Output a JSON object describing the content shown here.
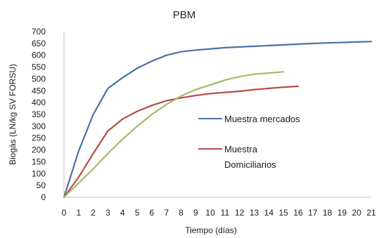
{
  "chart_data": {
    "type": "line",
    "title": "PBM",
    "xlabel": "Tiempo (días)",
    "ylabel": "Biogás (LN/kg SV  FORSU)",
    "x_ticks": [
      "0",
      "1",
      "2",
      "3",
      "4",
      "5",
      "6",
      "7",
      "8",
      "9",
      "10",
      "11",
      "12",
      "13",
      "14",
      "15",
      "16",
      "17",
      "18",
      "19",
      "20",
      "21"
    ],
    "y_ticks": [
      "0",
      "50",
      "100",
      "150",
      "200",
      "250",
      "300",
      "350",
      "400",
      "450",
      "500",
      "550",
      "600",
      "650",
      "700"
    ],
    "xlim": [
      0,
      21
    ],
    "ylim": [
      0,
      700
    ],
    "grid": false,
    "legend_placement": "center-right",
    "legend_entries": [
      "Muestra mercados",
      "Muestra",
      "Domiciliarios"
    ],
    "series": [
      {
        "name": "Muestra mercados",
        "color": "#4a72a8",
        "x": [
          0,
          1,
          2,
          3,
          4,
          5,
          6,
          7,
          8,
          9,
          10,
          11,
          12,
          13,
          14,
          15,
          16,
          17,
          18,
          19,
          20,
          21
        ],
        "values": [
          0,
          195,
          350,
          460,
          505,
          545,
          575,
          600,
          615,
          622,
          627,
          632,
          635,
          638,
          641,
          644,
          647,
          650,
          652,
          654,
          656,
          658
        ]
      },
      {
        "name": "Muestra Domiciliarios",
        "color": "#b84a47",
        "x": [
          0,
          1,
          2,
          3,
          4,
          5,
          6,
          7,
          8,
          9,
          10,
          11,
          12,
          13,
          14,
          15,
          16
        ],
        "values": [
          0,
          85,
          185,
          280,
          330,
          363,
          388,
          408,
          420,
          430,
          438,
          443,
          448,
          455,
          460,
          465,
          469
        ]
      },
      {
        "color": "#a6b96a",
        "x": [
          0,
          1,
          2,
          3,
          4,
          5,
          6,
          7,
          8,
          9,
          10,
          11,
          12,
          13,
          14,
          15
        ],
        "values": [
          0,
          60,
          120,
          185,
          245,
          300,
          350,
          392,
          428,
          455,
          475,
          495,
          510,
          520,
          525,
          530
        ]
      }
    ]
  }
}
